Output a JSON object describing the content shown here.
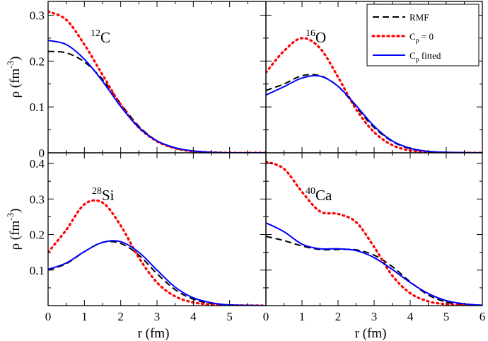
{
  "chart_data": [
    {
      "type": "line",
      "nucleus": {
        "mass": "12",
        "symbol": "C"
      },
      "xlim": [
        0,
        6
      ],
      "ylim": [
        0,
        0.33
      ],
      "xticks": [
        "0",
        "1",
        "2",
        "3",
        "4",
        "5"
      ],
      "yticks": [
        {
          "v": 0,
          "label": "0"
        },
        {
          "v": 0.1,
          "label": "0.1"
        },
        {
          "v": 0.2,
          "label": "0.2"
        },
        {
          "v": 0.3,
          "label": "0.3"
        }
      ],
      "ylabel": "ρ (fm-3)",
      "xlabel": "",
      "series": [
        {
          "name": "RMF",
          "x": [
            0,
            0.5,
            1.0,
            1.5,
            2.0,
            2.5,
            3.0,
            3.5,
            4.0,
            4.5,
            5.0,
            6.0
          ],
          "y": [
            0.221,
            0.218,
            0.198,
            0.16,
            0.107,
            0.058,
            0.026,
            0.01,
            0.004,
            0.001,
            0.0,
            0.0
          ]
        },
        {
          "name": "Cρ = 0",
          "x": [
            0,
            0.5,
            1.0,
            1.5,
            2.0,
            2.5,
            3.0,
            3.5,
            4.0,
            4.5,
            5.0,
            6.0
          ],
          "y": [
            0.308,
            0.29,
            0.236,
            0.17,
            0.105,
            0.055,
            0.025,
            0.01,
            0.003,
            0.001,
            0.0,
            0.0
          ]
        },
        {
          "name": "Cρ fitted",
          "x": [
            0,
            0.5,
            1.0,
            1.5,
            2.0,
            2.5,
            3.0,
            3.5,
            4.0,
            4.5,
            5.0,
            6.0
          ],
          "y": [
            0.245,
            0.236,
            0.204,
            0.156,
            0.101,
            0.055,
            0.026,
            0.011,
            0.004,
            0.001,
            0.0,
            0.0
          ]
        }
      ]
    },
    {
      "type": "line",
      "nucleus": {
        "mass": "16",
        "symbol": "O"
      },
      "xlim": [
        0,
        6
      ],
      "ylim": [
        0,
        0.33
      ],
      "xticks": [
        "0",
        "1",
        "2",
        "3",
        "4",
        "5",
        "6"
      ],
      "yticks": [],
      "ylabel": "",
      "xlabel": "",
      "series": [
        {
          "name": "RMF",
          "x": [
            0,
            0.5,
            1.0,
            1.5,
            2.0,
            2.5,
            3.0,
            3.5,
            4.0,
            4.5,
            5.0,
            6.0
          ],
          "y": [
            0.136,
            0.15,
            0.168,
            0.168,
            0.145,
            0.1,
            0.055,
            0.025,
            0.009,
            0.003,
            0.001,
            0.0
          ]
        },
        {
          "name": "Cρ = 0",
          "x": [
            0,
            0.5,
            1.0,
            1.5,
            2.0,
            2.5,
            3.0,
            3.5,
            4.0,
            4.5,
            5.0,
            6.0
          ],
          "y": [
            0.175,
            0.222,
            0.25,
            0.228,
            0.165,
            0.095,
            0.045,
            0.017,
            0.005,
            0.002,
            0.0,
            0.0
          ]
        },
        {
          "name": "Cρ fitted",
          "x": [
            0,
            0.5,
            1.0,
            1.5,
            2.0,
            2.5,
            3.0,
            3.5,
            4.0,
            4.5,
            5.0,
            6.0
          ],
          "y": [
            0.126,
            0.144,
            0.163,
            0.167,
            0.145,
            0.103,
            0.058,
            0.026,
            0.01,
            0.003,
            0.001,
            0.0
          ]
        }
      ],
      "legend": {
        "position": "top-right",
        "entries": [
          "RMF",
          "Cρ = 0",
          "Cρ fitted"
        ]
      }
    },
    {
      "type": "line",
      "nucleus": {
        "mass": "28",
        "symbol": "Si"
      },
      "xlim": [
        0,
        6
      ],
      "ylim": [
        0,
        0.43
      ],
      "xticks": [
        "0",
        "1",
        "2",
        "3",
        "4",
        "5"
      ],
      "yticks": [
        {
          "v": 0.1,
          "label": "0.1"
        },
        {
          "v": 0.2,
          "label": "0.2"
        },
        {
          "v": 0.3,
          "label": "0.3"
        },
        {
          "v": 0.4,
          "label": "0.4"
        }
      ],
      "ylabel": "ρ (fm-3)",
      "xlabel": "r (fm)",
      "series": [
        {
          "name": "RMF",
          "x": [
            0,
            0.5,
            1.0,
            1.5,
            2.0,
            2.5,
            3.0,
            3.5,
            4.0,
            4.5,
            5.0,
            6.0
          ],
          "y": [
            0.1,
            0.118,
            0.152,
            0.178,
            0.175,
            0.142,
            0.09,
            0.045,
            0.018,
            0.006,
            0.002,
            0.0
          ]
        },
        {
          "name": "Cρ = 0",
          "x": [
            0,
            0.5,
            1.0,
            1.5,
            2.0,
            2.5,
            3.0,
            3.5,
            4.0,
            4.5,
            5.0,
            6.0
          ],
          "y": [
            0.15,
            0.213,
            0.285,
            0.29,
            0.225,
            0.135,
            0.065,
            0.026,
            0.009,
            0.003,
            0.001,
            0.0
          ]
        },
        {
          "name": "Cρ fitted",
          "x": [
            0,
            0.5,
            1.0,
            1.5,
            2.0,
            2.5,
            3.0,
            3.5,
            4.0,
            4.5,
            5.0,
            6.0
          ],
          "y": [
            0.102,
            0.12,
            0.152,
            0.178,
            0.18,
            0.15,
            0.1,
            0.052,
            0.022,
            0.008,
            0.002,
            0.0
          ]
        }
      ]
    },
    {
      "type": "line",
      "nucleus": {
        "mass": "40",
        "symbol": "Ca"
      },
      "xlim": [
        0,
        6
      ],
      "ylim": [
        0,
        0.43
      ],
      "xticks": [
        "0",
        "1",
        "2",
        "3",
        "4",
        "5",
        "6"
      ],
      "yticks": [],
      "ylabel": "",
      "xlabel": "r (fm)",
      "series": [
        {
          "name": "RMF",
          "x": [
            0,
            0.5,
            1.0,
            1.5,
            2.0,
            2.5,
            3.0,
            3.5,
            4.0,
            4.5,
            5.0,
            5.5,
            6.0
          ],
          "y": [
            0.195,
            0.183,
            0.168,
            0.158,
            0.158,
            0.157,
            0.142,
            0.11,
            0.067,
            0.03,
            0.01,
            0.003,
            0.001
          ]
        },
        {
          "name": "Cρ = 0",
          "x": [
            0,
            0.5,
            1.0,
            1.5,
            2.0,
            2.5,
            3.0,
            3.5,
            4.0,
            4.5,
            5.0,
            5.5,
            6.0
          ],
          "y": [
            0.405,
            0.385,
            0.32,
            0.265,
            0.258,
            0.235,
            0.165,
            0.085,
            0.035,
            0.012,
            0.004,
            0.001,
            0.0
          ]
        },
        {
          "name": "Cρ fitted",
          "x": [
            0,
            0.5,
            1.0,
            1.5,
            2.0,
            2.5,
            3.0,
            3.5,
            4.0,
            4.5,
            5.0,
            5.5,
            6.0
          ],
          "y": [
            0.233,
            0.208,
            0.173,
            0.16,
            0.16,
            0.155,
            0.135,
            0.102,
            0.065,
            0.034,
            0.014,
            0.005,
            0.001
          ]
        }
      ]
    }
  ],
  "styles": {
    "RMF": {
      "color": "#000000",
      "dash": "9,5",
      "width": 2
    },
    "Cρ = 0": {
      "color": "#ff0000",
      "dash": "2,5",
      "width": 3.2
    },
    "Cρ fitted": {
      "color": "#0000ff",
      "dash": "",
      "width": 2
    }
  }
}
